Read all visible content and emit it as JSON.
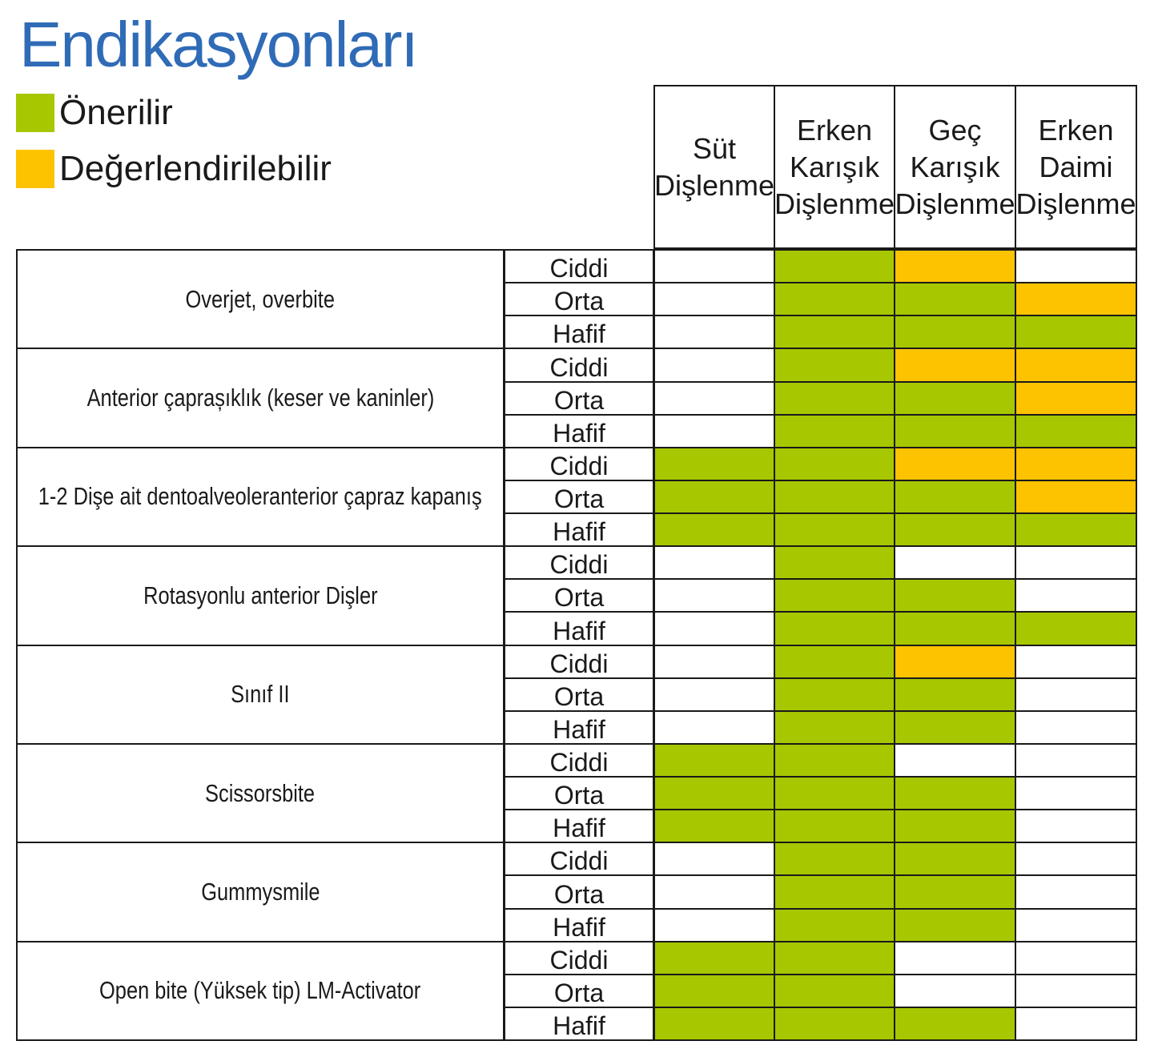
{
  "title": "Endikasyonları",
  "legend": [
    {
      "label": "Önerilir",
      "color": "#a7c700",
      "icon": "green-square"
    },
    {
      "label": "Değerlendirilebilir",
      "color": "#fdc300",
      "icon": "yellow-square"
    }
  ],
  "columns": [
    "Süt\nDişlenme",
    "Erken\nKarışık\nDişlenme",
    "Geç\nKarışık\nDişlenme",
    "Erken\nDaimi\nDişlenme"
  ],
  "severity_levels": [
    "Ciddi",
    "Orta",
    "Hafif"
  ],
  "status_colors": {
    "G": "#a7c700",
    "Y": "#fdc300",
    "W": "#ffffff"
  },
  "groups": [
    {
      "label": "Overjet, overbite",
      "rows": [
        [
          "W",
          "G",
          "Y",
          "W"
        ],
        [
          "W",
          "G",
          "G",
          "Y"
        ],
        [
          "W",
          "G",
          "G",
          "G"
        ]
      ]
    },
    {
      "label": "Anterior çaprașıklık (keser ve kaninler)",
      "rows": [
        [
          "W",
          "G",
          "Y",
          "Y"
        ],
        [
          "W",
          "G",
          "G",
          "Y"
        ],
        [
          "W",
          "G",
          "G",
          "G"
        ]
      ]
    },
    {
      "label": "1-2 Dişe ait dentoalveoleranterior çapraz kapanış",
      "rows": [
        [
          "G",
          "G",
          "Y",
          "Y"
        ],
        [
          "G",
          "G",
          "G",
          "Y"
        ],
        [
          "G",
          "G",
          "G",
          "G"
        ]
      ]
    },
    {
      "label": "Rotasyonlu anterior Dişler",
      "rows": [
        [
          "W",
          "G",
          "W",
          "W"
        ],
        [
          "W",
          "G",
          "G",
          "W"
        ],
        [
          "W",
          "G",
          "G",
          "G"
        ]
      ]
    },
    {
      "label": "Sınıf II",
      "rows": [
        [
          "W",
          "G",
          "Y",
          "W"
        ],
        [
          "W",
          "G",
          "G",
          "W"
        ],
        [
          "W",
          "G",
          "G",
          "W"
        ]
      ]
    },
    {
      "label": "Scissorsbite",
      "rows": [
        [
          "G",
          "G",
          "W",
          "W"
        ],
        [
          "G",
          "G",
          "G",
          "W"
        ],
        [
          "G",
          "G",
          "G",
          "W"
        ]
      ]
    },
    {
      "label": "Gummysmile",
      "rows": [
        [
          "W",
          "G",
          "G",
          "W"
        ],
        [
          "W",
          "G",
          "G",
          "W"
        ],
        [
          "W",
          "G",
          "G",
          "W"
        ]
      ]
    },
    {
      "label": "Open bite (Yüksek tip) LM-Activator",
      "rows": [
        [
          "G",
          "G",
          "W",
          "W"
        ],
        [
          "G",
          "G",
          "W",
          "W"
        ],
        [
          "G",
          "G",
          "G",
          "W"
        ]
      ]
    }
  ]
}
